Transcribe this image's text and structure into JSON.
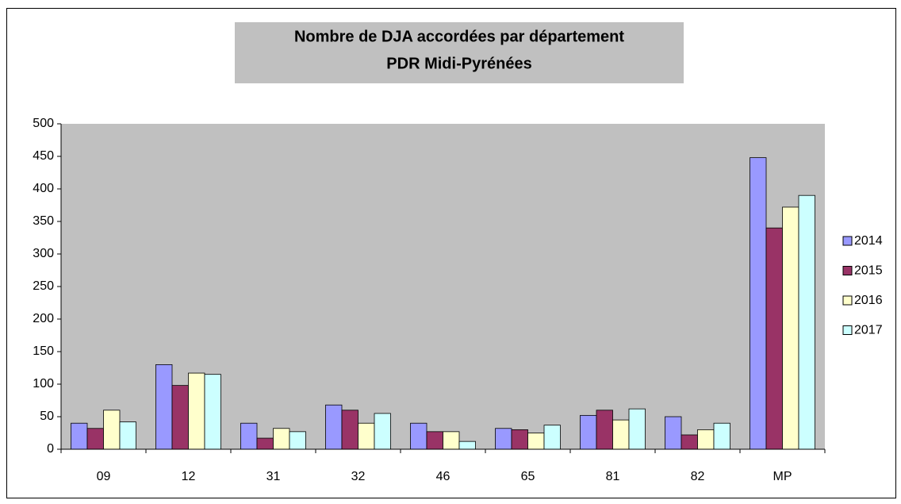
{
  "chart_data": {
    "type": "bar",
    "title": [
      "Nombre de DJA accordées par département",
      "PDR Midi-Pyrénées"
    ],
    "categories": [
      "09",
      "12",
      "31",
      "32",
      "46",
      "65",
      "81",
      "82",
      "MP"
    ],
    "series": [
      {
        "name": "2014",
        "color": "#9999FF",
        "values": [
          40,
          130,
          40,
          68,
          40,
          32,
          52,
          50,
          448
        ]
      },
      {
        "name": "2015",
        "color": "#993366",
        "values": [
          32,
          98,
          17,
          60,
          27,
          30,
          60,
          22,
          340
        ]
      },
      {
        "name": "2016",
        "color": "#FFFFCC",
        "values": [
          60,
          117,
          32,
          40,
          27,
          25,
          45,
          30,
          372
        ]
      },
      {
        "name": "2017",
        "color": "#CCFFFF",
        "values": [
          42,
          115,
          27,
          55,
          12,
          37,
          62,
          40,
          390
        ]
      }
    ],
    "ylim": [
      0,
      500
    ],
    "yticks": [
      0,
      50,
      100,
      150,
      200,
      250,
      300,
      350,
      400,
      450,
      500
    ],
    "grid": false,
    "legend": "right"
  }
}
